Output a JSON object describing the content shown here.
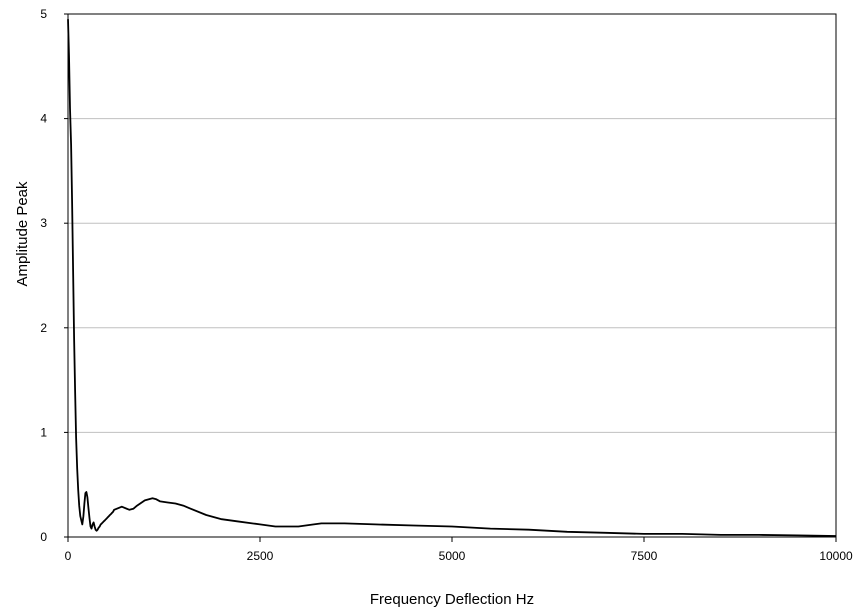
{
  "chart_data": {
    "type": "line",
    "title": "",
    "xlabel": "Frequency Deflection Hz",
    "ylabel": "Amplitude Peak",
    "xlim": [
      0,
      10000
    ],
    "ylim": [
      0,
      5
    ],
    "x_ticks": [
      0,
      2500,
      5000,
      7500,
      10000
    ],
    "y_ticks": [
      0,
      1,
      2,
      3,
      4,
      5
    ],
    "x_tick_labels": [
      "0",
      "2500",
      "5000",
      "7500",
      "10000"
    ],
    "y_tick_labels": [
      "0",
      "1",
      "2",
      "3",
      "4",
      "5"
    ],
    "grid": "horizontal",
    "legend": "none",
    "line_color": "#000000",
    "grid_color": "#c0c0c0",
    "series": [
      {
        "x": [
          0,
          13,
          26,
          40,
          53,
          66,
          80,
          93,
          106,
          120,
          133,
          146,
          160,
          173,
          186,
          200,
          213,
          226,
          240,
          253,
          266,
          280,
          293,
          306,
          320,
          333,
          346,
          360,
          373,
          386,
          400,
          413,
          426,
          440,
          453,
          466,
          480,
          493,
          506,
          520,
          533,
          546,
          560,
          573,
          586,
          600,
          700,
          800,
          850,
          900,
          1000,
          1100,
          1150,
          1200,
          1300,
          1400,
          1500,
          1600,
          1800,
          2000,
          2200,
          2500,
          2700,
          2800,
          3000,
          3200,
          3300,
          3600,
          4000,
          4500,
          5000,
          5500,
          6000,
          6500,
          7000,
          7500,
          8000,
          8500,
          9000,
          9500,
          10000
        ],
        "y": [
          4.95,
          4.6,
          4.1,
          3.75,
          3.2,
          2.55,
          1.9,
          1.4,
          0.95,
          0.65,
          0.45,
          0.3,
          0.2,
          0.16,
          0.12,
          0.2,
          0.32,
          0.42,
          0.43,
          0.38,
          0.28,
          0.18,
          0.1,
          0.08,
          0.12,
          0.14,
          0.1,
          0.07,
          0.06,
          0.07,
          0.09,
          0.1,
          0.12,
          0.13,
          0.14,
          0.15,
          0.16,
          0.17,
          0.18,
          0.19,
          0.2,
          0.21,
          0.22,
          0.23,
          0.24,
          0.26,
          0.29,
          0.26,
          0.27,
          0.3,
          0.35,
          0.37,
          0.36,
          0.34,
          0.33,
          0.32,
          0.3,
          0.27,
          0.21,
          0.17,
          0.15,
          0.12,
          0.1,
          0.1,
          0.1,
          0.12,
          0.13,
          0.13,
          0.12,
          0.11,
          0.1,
          0.08,
          0.07,
          0.05,
          0.04,
          0.03,
          0.03,
          0.02,
          0.02,
          0.015,
          0.01
        ]
      }
    ]
  }
}
